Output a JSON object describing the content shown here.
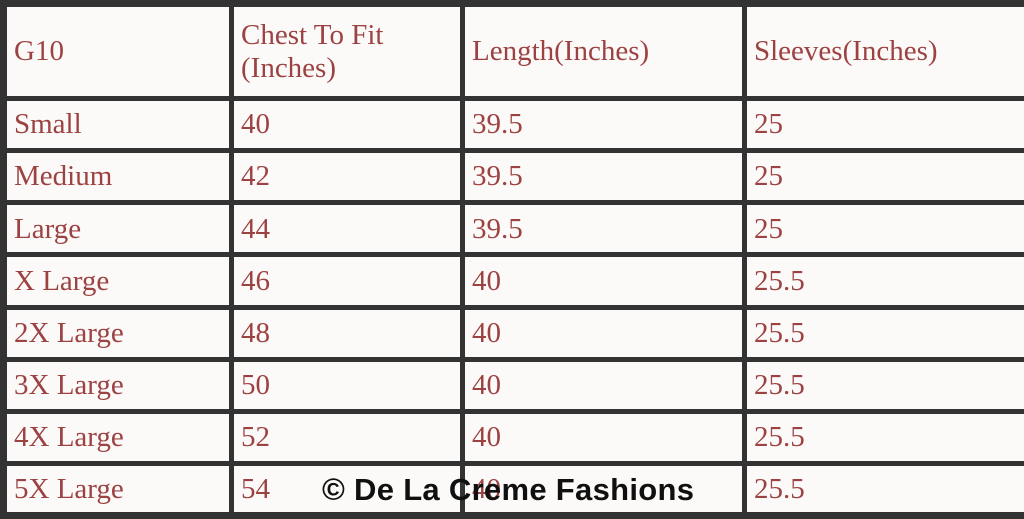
{
  "table": {
    "columns": [
      "G10",
      "Chest To Fit (Inches)",
      "Length(Inches)",
      "Sleeves(Inches)"
    ],
    "rows": [
      {
        "size": "Small",
        "chest": "40",
        "length": "39.5",
        "sleeves": "25"
      },
      {
        "size": "Medium",
        "chest": "42",
        "length": "39.5",
        "sleeves": "25"
      },
      {
        "size": "Large",
        "chest": "44",
        "length": "39.5",
        "sleeves": "25"
      },
      {
        "size": "X Large",
        "chest": "46",
        "length": "40",
        "sleeves": "25.5"
      },
      {
        "size": "2X Large",
        "chest": "48",
        "length": "40",
        "sleeves": "25.5"
      },
      {
        "size": "3X Large",
        "chest": "50",
        "length": "40",
        "sleeves": "25.5"
      },
      {
        "size": "4X Large",
        "chest": "52",
        "length": "40",
        "sleeves": "25.5"
      },
      {
        "size": "5X Large",
        "chest": "54",
        "length": "40",
        "sleeves": "25.5"
      }
    ]
  },
  "watermark": {
    "text": "© De La Creme Fashions"
  },
  "colors": {
    "table_text": "#9d4242",
    "border": "#333333",
    "cell_background": "#fbfaf8",
    "watermark_text": "#101010"
  }
}
